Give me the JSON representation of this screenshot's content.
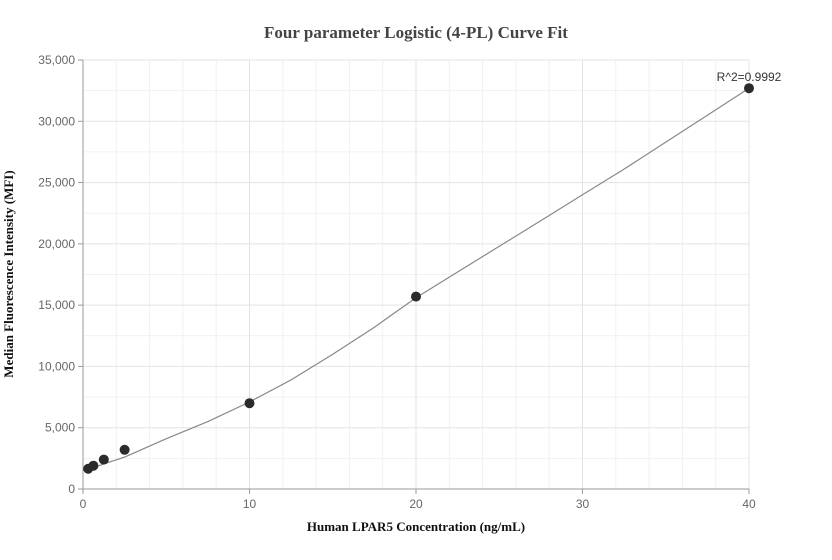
{
  "chart_data": {
    "type": "scatter",
    "title": "Four parameter Logistic (4-PL) Curve Fit",
    "xlabel": "Human LPAR5 Concentration (ng/mL)",
    "ylabel": "Median Fluorescence Intensity (MFI)",
    "xlim": [
      0,
      40
    ],
    "ylim": [
      0,
      35000
    ],
    "x_ticks": [
      0,
      10,
      20,
      30,
      40
    ],
    "y_ticks": [
      0,
      5000,
      10000,
      15000,
      20000,
      25000,
      30000,
      35000
    ],
    "x_tick_labels": [
      "0",
      "10",
      "20",
      "30",
      "40"
    ],
    "y_tick_labels": [
      "0",
      "5,000",
      "10,000",
      "15,000",
      "20,000",
      "25,000",
      "30,000",
      "35,000"
    ],
    "grid": true,
    "points": {
      "x": [
        0.3125,
        0.625,
        1.25,
        2.5,
        10,
        20,
        40
      ],
      "y": [
        1650,
        1900,
        2400,
        3200,
        7000,
        15700,
        32700
      ]
    },
    "fit_curve": {
      "x": [
        0,
        0.625,
        1.25,
        2.5,
        5,
        7.5,
        10,
        12.5,
        15,
        17.5,
        20,
        22.5,
        25,
        27.5,
        30,
        32.5,
        35,
        37.5,
        40
      ],
      "y": [
        1500,
        1750,
        2050,
        2600,
        4100,
        5500,
        7100,
        8900,
        11000,
        13200,
        15600,
        17700,
        19800,
        21900,
        24000,
        26100,
        28300,
        30500,
        32700
      ]
    },
    "annotation": "R^2=0.9992",
    "colors": {
      "point": "#2b2b2b",
      "curve": "#888888"
    }
  }
}
